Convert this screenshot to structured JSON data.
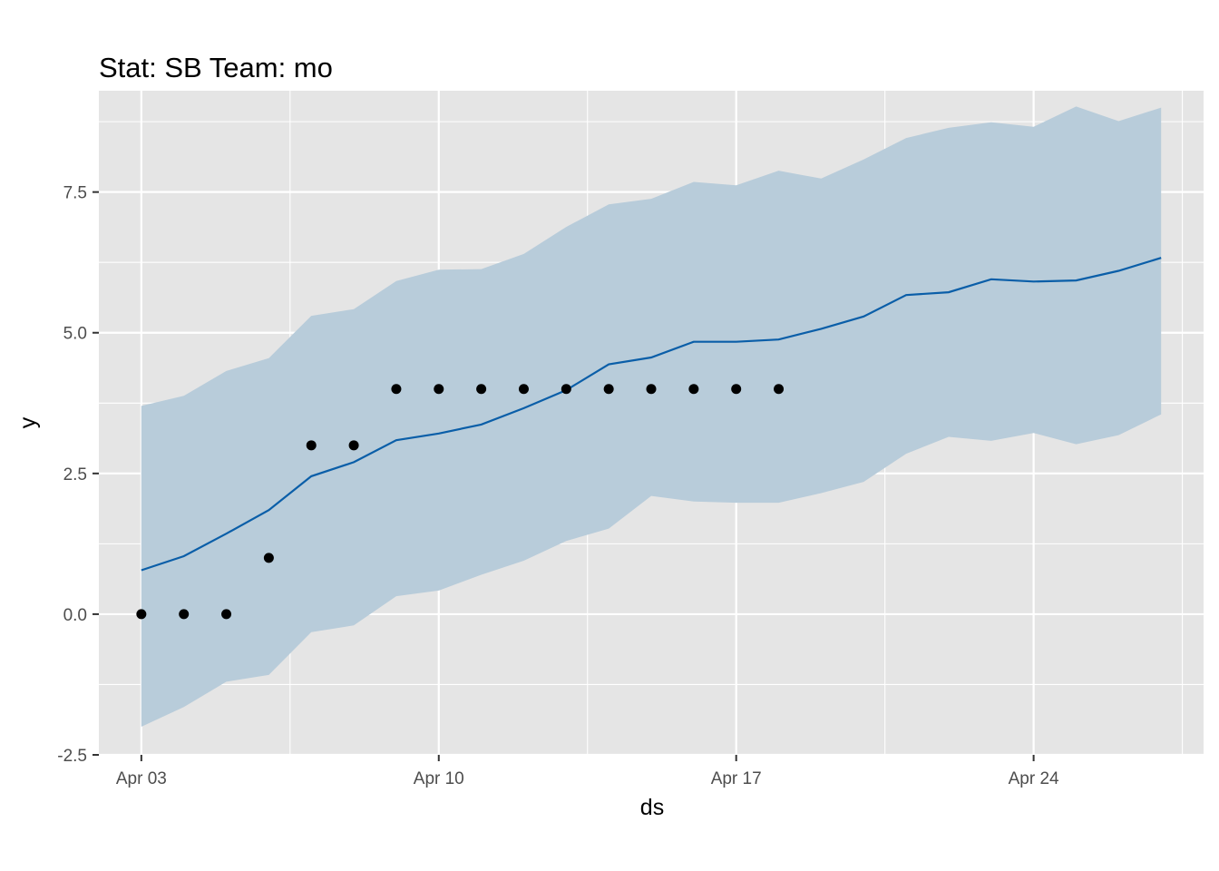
{
  "chart_data": {
    "type": "line",
    "title": "Stat: SB Team: mo",
    "xlabel": "ds",
    "ylabel": "y",
    "x_range": [
      "2023-04-02",
      "2023-04-28"
    ],
    "ylim": [
      -2.5,
      9.3
    ],
    "x_ticks": [
      {
        "date": "2023-04-03",
        "label": "Apr 03"
      },
      {
        "date": "2023-04-10",
        "label": "Apr 10"
      },
      {
        "date": "2023-04-17",
        "label": "Apr 17"
      },
      {
        "date": "2023-04-24",
        "label": "Apr 24"
      }
    ],
    "y_ticks": [
      {
        "value": -2.5,
        "label": "-2.5"
      },
      {
        "value": 0,
        "label": "0.0"
      },
      {
        "value": 2.5,
        "label": "2.5"
      },
      {
        "value": 5,
        "label": "5.0"
      },
      {
        "value": 7.5,
        "label": "7.5"
      }
    ],
    "grid": true,
    "colors": {
      "panel": "#e5e5e5",
      "grid": "#ffffff",
      "band": "#b8ccda",
      "line": "#0a5ea8",
      "points": "#000000"
    },
    "observed": {
      "x": [
        "2023-04-03",
        "2023-04-04",
        "2023-04-05",
        "2023-04-06",
        "2023-04-07",
        "2023-04-08",
        "2023-04-09",
        "2023-04-10",
        "2023-04-11",
        "2023-04-12",
        "2023-04-13",
        "2023-04-14",
        "2023-04-15",
        "2023-04-16",
        "2023-04-17",
        "2023-04-18"
      ],
      "y": [
        0,
        0,
        0,
        1,
        3,
        3,
        4,
        4,
        4,
        4,
        4,
        4,
        4,
        4,
        4,
        4
      ]
    },
    "forecast": {
      "x": [
        "2023-04-03",
        "2023-04-04",
        "2023-04-05",
        "2023-04-06",
        "2023-04-07",
        "2023-04-08",
        "2023-04-09",
        "2023-04-10",
        "2023-04-11",
        "2023-04-12",
        "2023-04-13",
        "2023-04-14",
        "2023-04-15",
        "2023-04-16",
        "2023-04-17",
        "2023-04-18",
        "2023-04-19",
        "2023-04-20",
        "2023-04-21",
        "2023-04-22",
        "2023-04-23",
        "2023-04-24",
        "2023-04-25",
        "2023-04-26",
        "2023-04-27"
      ],
      "yhat": [
        0.78,
        1.03,
        1.43,
        1.85,
        2.45,
        2.7,
        3.09,
        3.21,
        3.37,
        3.66,
        3.98,
        4.44,
        4.56,
        4.84,
        4.84,
        4.88,
        5.07,
        5.29,
        5.67,
        5.72,
        5.95,
        5.91,
        5.93,
        6.1,
        6.33
      ],
      "yhat_lower": [
        -2.0,
        -1.65,
        -1.2,
        -1.08,
        -0.32,
        -0.2,
        0.32,
        0.42,
        0.7,
        0.95,
        1.3,
        1.52,
        2.1,
        2.0,
        1.98,
        1.98,
        2.15,
        2.35,
        2.85,
        3.15,
        3.08,
        3.22,
        3.02,
        3.18,
        3.55
      ],
      "yhat_upper": [
        3.7,
        3.88,
        4.32,
        4.55,
        5.3,
        5.42,
        5.92,
        6.12,
        6.13,
        6.4,
        6.88,
        7.28,
        7.38,
        7.68,
        7.62,
        7.88,
        7.74,
        8.08,
        8.46,
        8.64,
        8.74,
        8.66,
        9.02,
        8.76,
        9.0
      ]
    }
  }
}
